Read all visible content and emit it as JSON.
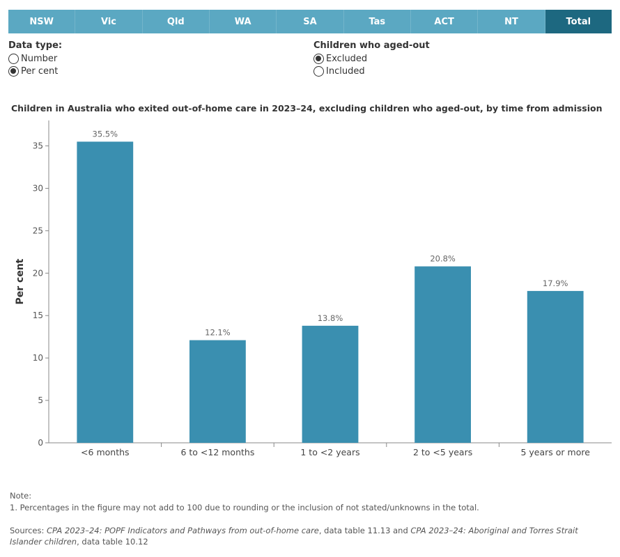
{
  "tabs": [
    {
      "label": "NSW",
      "active": false
    },
    {
      "label": "Vic",
      "active": false
    },
    {
      "label": "Qld",
      "active": false
    },
    {
      "label": "WA",
      "active": false
    },
    {
      "label": "SA",
      "active": false
    },
    {
      "label": "Tas",
      "active": false
    },
    {
      "label": "ACT",
      "active": false
    },
    {
      "label": "NT",
      "active": false
    },
    {
      "label": "Total",
      "active": true
    }
  ],
  "data_type": {
    "title": "Data type:",
    "options": [
      {
        "label": "Number",
        "selected": false
      },
      {
        "label": "Per cent",
        "selected": true
      }
    ]
  },
  "aged_out": {
    "title": "Children who aged-out",
    "options": [
      {
        "label": "Excluded",
        "selected": true
      },
      {
        "label": "Included",
        "selected": false
      }
    ]
  },
  "chart_title": "Children in Australia who exited out-of-home care in 2023–24, excluding children who aged-out, by time from admission",
  "chart_data": {
    "type": "bar",
    "title": "Children in Australia who exited out-of-home care in 2023–24, excluding children who aged-out, by time from admission",
    "categories": [
      "<6 months",
      "6 to <12 months",
      "1 to <2 years",
      "2 to <5 years",
      "5 years or more"
    ],
    "values": [
      35.5,
      12.1,
      13.8,
      20.8,
      17.9
    ],
    "data_labels": [
      "35.5%",
      "12.1%",
      "13.8%",
      "20.8%",
      "17.9%"
    ],
    "xlabel": "",
    "ylabel": "Per cent",
    "ylim": [
      0,
      38
    ],
    "yticks": [
      0,
      5,
      10,
      15,
      20,
      25,
      30,
      35
    ],
    "grid": false,
    "bar_color": "#3a8fb0"
  },
  "notes": {
    "heading": "Note:",
    "items": [
      "1. Percentages in the figure may not add to 100 due to rounding or the inclusion of not stated/unknowns in the total."
    ]
  },
  "sources": {
    "prefix": "Sources: ",
    "ref1": "CPA 2023–24: POPF Indicators and Pathways from out-of-home care",
    "mid": ", data table 11.13 and ",
    "ref2": "CPA 2023–24: Aboriginal and Torres Strait Islander children",
    "suffix": ", data table 10.12"
  },
  "colors": {
    "tab_bg": "#5ba8c2",
    "tab_active": "#1d6880",
    "bar": "#3a8fb0"
  }
}
